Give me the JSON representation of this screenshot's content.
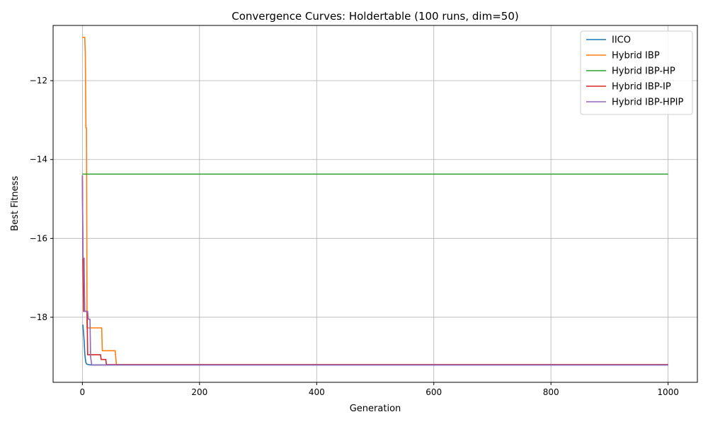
{
  "chart_data": {
    "type": "line",
    "title": "Convergence Curves: Holdertable (100 runs, dim=50)",
    "xlabel": "Generation",
    "ylabel": "Best Fitness",
    "xlim": [
      -50,
      1050
    ],
    "ylim": [
      -19.65,
      -10.6
    ],
    "xticks": [
      0,
      200,
      400,
      600,
      800,
      1000
    ],
    "yticks": [
      -18,
      -16,
      -14,
      -12
    ],
    "grid": true,
    "legend_position": "upper right",
    "series": [
      {
        "name": "IICO",
        "color": "#1f77b4",
        "points": [
          [
            0,
            -18.2
          ],
          [
            1,
            -18.2
          ],
          [
            2,
            -18.4
          ],
          [
            3,
            -18.6
          ],
          [
            4,
            -18.9
          ],
          [
            5,
            -19.05
          ],
          [
            6,
            -19.15
          ],
          [
            7,
            -19.18
          ],
          [
            8,
            -19.19
          ],
          [
            10,
            -19.2
          ],
          [
            15,
            -19.21
          ],
          [
            1000,
            -19.21
          ]
        ]
      },
      {
        "name": "Hybrid IBP",
        "color": "#ff7f0e",
        "points": [
          [
            0,
            -10.9
          ],
          [
            4,
            -10.9
          ],
          [
            5,
            -11.3
          ],
          [
            6,
            -13.2
          ],
          [
            7,
            -13.2
          ],
          [
            8,
            -18.27
          ],
          [
            33,
            -18.27
          ],
          [
            34,
            -18.85
          ],
          [
            56,
            -18.85
          ],
          [
            58,
            -19.2
          ],
          [
            1000,
            -19.2
          ]
        ]
      },
      {
        "name": "Hybrid IBP-HP",
        "color": "#2ca02c",
        "points": [
          [
            0,
            -14.37
          ],
          [
            1000,
            -14.37
          ]
        ]
      },
      {
        "name": "Hybrid IBP-IP",
        "color": "#d62728",
        "points": [
          [
            0,
            -14.4
          ],
          [
            1,
            -16.5
          ],
          [
            2,
            -17.85
          ],
          [
            8,
            -17.85
          ],
          [
            9,
            -18.95
          ],
          [
            31,
            -18.95
          ],
          [
            32,
            -19.07
          ],
          [
            40,
            -19.07
          ],
          [
            41,
            -19.2
          ],
          [
            1000,
            -19.2
          ]
        ]
      },
      {
        "name": "Hybrid IBP-HPIP",
        "color": "#9467bd",
        "points": [
          [
            0,
            -14.4
          ],
          [
            1,
            -16.5
          ],
          [
            3,
            -16.5
          ],
          [
            4,
            -17.85
          ],
          [
            9,
            -17.85
          ],
          [
            10,
            -18.05
          ],
          [
            13,
            -18.05
          ],
          [
            14,
            -19.0
          ],
          [
            16,
            -19.21
          ],
          [
            1000,
            -19.21
          ]
        ]
      }
    ]
  }
}
